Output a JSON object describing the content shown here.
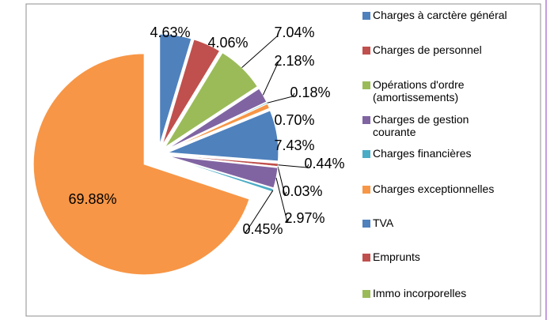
{
  "chart_data": {
    "type": "pie",
    "categories": [
      "Charges à carctère général",
      "Charges de personnel",
      "Opérations d'ordre (amortissements)",
      "Charges de gestion courante",
      "Charges financières",
      "Charges exceptionnelles",
      "TVA",
      "Emprunts",
      "Immo incorporelles",
      null,
      null,
      null
    ],
    "values": [
      4.63,
      4.06,
      7.04,
      2.18,
      0.18,
      0.7,
      7.43,
      0.44,
      0.03,
      2.97,
      0.45,
      69.88
    ],
    "value_labels": [
      "4.63%",
      "4.06%",
      "7.04%",
      "2.18%",
      "0.18%",
      "0.70%",
      "7.43%",
      "0.44%",
      "0.03%",
      "2.97%",
      "0.45%",
      "69.88%"
    ],
    "colors": [
      "#4f81bd",
      "#c0504d",
      "#9bbb59",
      "#8064a2",
      "#4bacc6",
      "#f79646",
      "#4f81bd",
      "#c0504d",
      "#9bbb59",
      "#8064a2",
      "#4bacc6",
      "#f79646"
    ],
    "legend": "right"
  }
}
